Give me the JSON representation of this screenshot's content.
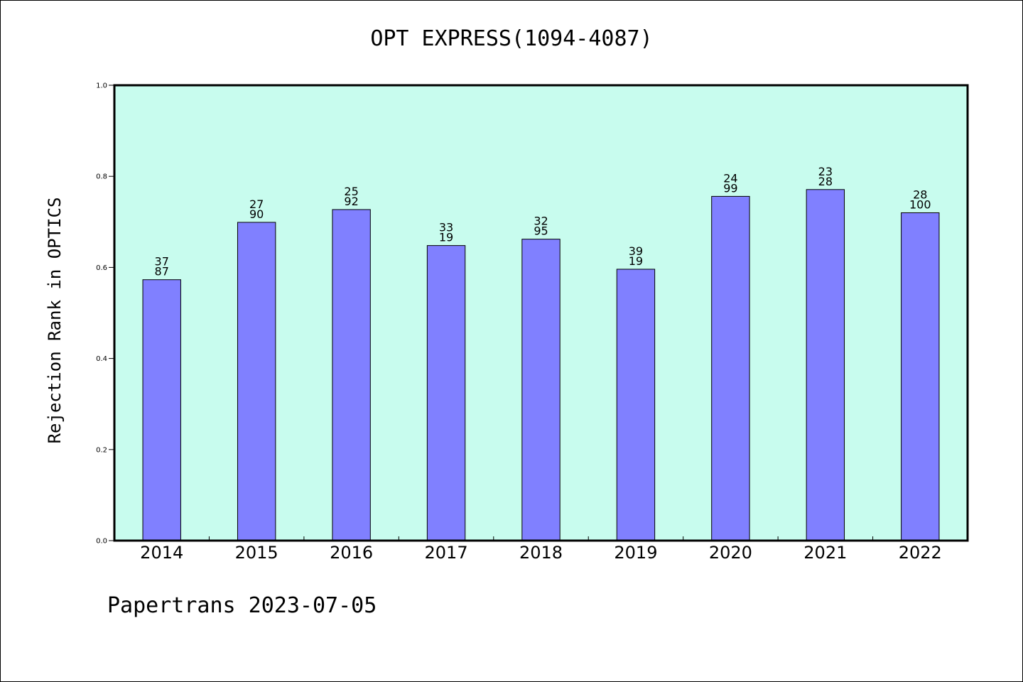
{
  "chart_data": {
    "type": "bar",
    "title": "OPT EXPRESS(1094-4087)",
    "xlabel": "",
    "ylabel": "Rejection Rank in OPTICS",
    "ylim": [
      0,
      1.0
    ],
    "yticks": [
      "0.0",
      "0.2",
      "0.4",
      "0.6",
      "0.8",
      "1.0"
    ],
    "categories": [
      "2014",
      "2015",
      "2016",
      "2017",
      "2018",
      "2019",
      "2020",
      "2021",
      "2022"
    ],
    "values": [
      0.573,
      0.699,
      0.727,
      0.648,
      0.662,
      0.596,
      0.756,
      0.771,
      0.72
    ],
    "labels_top": [
      "37",
      "27",
      "25",
      "33",
      "32",
      "39",
      "24",
      "23",
      "28"
    ],
    "labels_bottom": [
      "87",
      "90",
      "92",
      "19",
      "95",
      "19",
      "99",
      "28",
      "100"
    ],
    "grid": false,
    "colors": {
      "plot_background": "#c8fcee",
      "bar_fill": "#8080ff",
      "bar_stroke": "#000000"
    }
  },
  "footer": {
    "text": "Papertrans 2023-07-05"
  }
}
